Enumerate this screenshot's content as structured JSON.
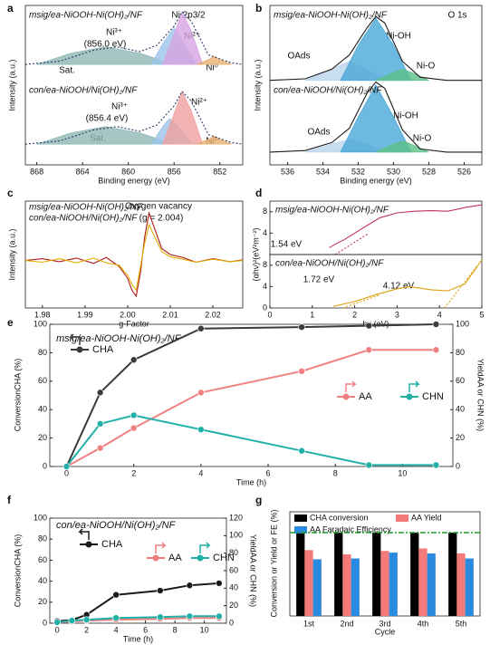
{
  "chart_data": [
    {
      "type": "line",
      "label": "a",
      "xlabel": "Binding energy (eV)",
      "ylabel": "Intensity (a.u.)",
      "xlim": [
        869,
        850
      ],
      "xticks": [
        868,
        864,
        860,
        856,
        852
      ],
      "ylim": [
        0,
        10
      ],
      "annotations": [
        "Ni 2p3/2",
        "Sat.",
        "Ni³⁺",
        "(856.0 eV)",
        "Ni²⁺",
        "Ni⁰",
        "Sat.",
        "Ni³⁺",
        "(856.4 eV)",
        "Ni²⁺",
        "Ni⁰"
      ],
      "series": [
        {
          "name": "msig/ea-NiOOH-Ni(OH)₂/NF",
          "color": "#2b3a67",
          "name_color": "#d0205a",
          "dash": true,
          "x": [
            869,
            866,
            863,
            861,
            859,
            857.5,
            856,
            855.3,
            854.5,
            853,
            851,
            850
          ],
          "values": [
            6.3,
            6.5,
            7.2,
            7.4,
            7.1,
            7.5,
            8.7,
            9.6,
            9.0,
            6.9,
            6.4,
            6.3
          ],
          "components": [
            {
              "color": "#8fb8b4",
              "x": [
                868,
                865,
                862,
                859,
                856
              ],
              "values": [
                6.3,
                7.0,
                7.4,
                7.0,
                6.3
              ]
            },
            {
              "color": "#9cc4ea",
              "x": [
                858,
                857,
                856,
                855,
                854
              ],
              "values": [
                6.3,
                7.6,
                8.6,
                7.4,
                6.3
              ]
            },
            {
              "color": "#d6a4e2",
              "x": [
                857,
                856,
                855.3,
                854.5,
                853.5
              ],
              "values": [
                6.3,
                8.2,
                9.6,
                8.4,
                6.3
              ]
            },
            {
              "color": "#e8b070",
              "x": [
                854,
                853,
                852.5,
                852,
                851
              ],
              "values": [
                6.3,
                6.6,
                6.8,
                6.6,
                6.3
              ]
            }
          ]
        },
        {
          "name": "con/ea-NiOOH/Ni(OH)₂/NF",
          "color": "#2b3a67",
          "name_color": "#e0a010",
          "dash": true,
          "x": [
            869,
            866,
            863,
            861,
            859,
            857.5,
            856,
            855.3,
            854.5,
            853,
            851,
            850
          ],
          "values": [
            1.3,
            1.5,
            2.2,
            2.4,
            2.1,
            2.5,
            3.7,
            4.6,
            4.0,
            1.9,
            1.4,
            1.3
          ],
          "components": [
            {
              "color": "#8fb8b4",
              "x": [
                868,
                865,
                862,
                859,
                856
              ],
              "values": [
                1.3,
                2.0,
                2.4,
                2.0,
                1.3
              ]
            },
            {
              "color": "#9cc4ea",
              "x": [
                858,
                857,
                856.4,
                855.4,
                854.4
              ],
              "values": [
                1.3,
                2.4,
                2.9,
                2.2,
                1.3
              ]
            },
            {
              "color": "#f0a0a0",
              "x": [
                857,
                856,
                855.3,
                854.5,
                853.5
              ],
              "values": [
                1.3,
                3.2,
                4.6,
                3.4,
                1.3
              ]
            },
            {
              "color": "#e8b070",
              "x": [
                854,
                853,
                852.5,
                852,
                851
              ],
              "values": [
                1.3,
                1.6,
                1.8,
                1.6,
                1.3
              ]
            }
          ]
        }
      ]
    },
    {
      "type": "line",
      "label": "b",
      "xlabel": "Binding energy (eV)",
      "ylabel": "Intensity (a.u.)",
      "xlim": [
        537,
        525
      ],
      "xticks": [
        536,
        534,
        532,
        530,
        528,
        526
      ],
      "ylim": [
        0,
        10
      ],
      "annotations": [
        "O 1s",
        "OAds",
        "Ni-OH",
        "Ni-O",
        "OAds",
        "Ni-OH",
        "Ni-O"
      ],
      "series": [
        {
          "name": "msig/ea-NiOOH-Ni(OH)₂/NF",
          "color": "#1a1a1a",
          "name_color": "#d0205a",
          "x": [
            537,
            535,
            533.5,
            532.5,
            531.5,
            531,
            530.5,
            529.5,
            528.5,
            527,
            525
          ],
          "values": [
            5.3,
            5.4,
            6.0,
            6.9,
            8.6,
            9.3,
            8.9,
            6.5,
            5.5,
            5.3,
            5.3
          ],
          "components": [
            {
              "color": "#bcd4ee",
              "x": [
                535,
                533.5,
                532.5,
                531.5,
                530.5
              ],
              "values": [
                5.3,
                6.0,
                6.5,
                6.0,
                5.3
              ]
            },
            {
              "color": "#4aa8d8",
              "x": [
                533,
                532,
                531,
                530,
                529
              ],
              "values": [
                5.3,
                7.5,
                9.2,
                7.5,
                5.3
              ]
            },
            {
              "color": "#5cc08a",
              "x": [
                531,
                530,
                529.5,
                529,
                528
              ],
              "values": [
                5.3,
                5.8,
                6.0,
                5.8,
                5.3
              ]
            }
          ]
        },
        {
          "name": "con/ea-NiOOH/Ni(OH)₂/NF",
          "color": "#1a1a1a",
          "name_color": "#e0a010",
          "x": [
            537,
            535,
            533.5,
            532.5,
            531.5,
            531,
            530.5,
            529.5,
            528.5,
            527,
            525
          ],
          "values": [
            0.8,
            0.9,
            1.4,
            2.3,
            4.5,
            5.2,
            4.8,
            2.2,
            1.0,
            0.8,
            0.8
          ],
          "components": [
            {
              "color": "#bcd4ee",
              "x": [
                535,
                533.5,
                532.5,
                531.5,
                530.5
              ],
              "values": [
                0.8,
                1.3,
                1.6,
                1.3,
                0.8
              ]
            },
            {
              "color": "#4aa8d8",
              "x": [
                533,
                532,
                531,
                530,
                529
              ],
              "values": [
                0.8,
                3.0,
                5.0,
                3.0,
                0.8
              ]
            },
            {
              "color": "#5cc08a",
              "x": [
                531,
                530,
                529.5,
                529,
                528
              ],
              "values": [
                0.8,
                1.3,
                1.5,
                1.3,
                0.8
              ]
            }
          ]
        }
      ]
    },
    {
      "type": "line",
      "label": "c",
      "xlabel": "g-Factor",
      "ylabel": "Intensity (a.u.)",
      "xlim": [
        1.976,
        2.027
      ],
      "xticks": [
        1.98,
        1.99,
        {
          "value": 2,
          "label": "2.00"
        },
        2.01,
        2.02
      ],
      "ylim": [
        -8,
        10
      ],
      "annotations": [
        "Oxygen vacancy",
        "(g = 2.004)"
      ],
      "series": [
        {
          "name": "msig/ea-NiOOH-Ni(OH)₂/NF",
          "color": "#b01818",
          "x": [
            1.976,
            1.98,
            1.984,
            1.988,
            1.992,
            1.995,
            1.998,
            2.0,
            2.001,
            2.002,
            2.003,
            2.004,
            2.005,
            2.006,
            2.008,
            2.01,
            2.013,
            2.016,
            2.02,
            2.024,
            2.027
          ],
          "values": [
            0,
            0.3,
            -0.2,
            0.4,
            -0.5,
            0.5,
            -1,
            -3,
            -5,
            -6,
            -2,
            4,
            8,
            6,
            2,
            1,
            0.5,
            -0.3,
            0.3,
            -0.2,
            0.1
          ]
        },
        {
          "name": "con/ea-NiOOH/Ni(OH)₂/NF",
          "color": "#e0b000",
          "x": [
            1.976,
            1.98,
            1.984,
            1.988,
            1.992,
            1.995,
            1.998,
            2.0,
            2.001,
            2.002,
            2.003,
            2.004,
            2.005,
            2.006,
            2.008,
            2.01,
            2.013,
            2.016,
            2.02,
            2.024,
            2.027
          ],
          "values": [
            0,
            -0.3,
            0.3,
            -0.4,
            0.4,
            -0.4,
            -0.8,
            -2.5,
            -4,
            -5,
            -1,
            3,
            6,
            4.5,
            1.5,
            0.6,
            0.2,
            -0.3,
            0.2,
            -0.2,
            0
          ]
        }
      ]
    },
    {
      "type": "line",
      "label": "d",
      "ylabel": "(αhν)²(eV²m⁻²)",
      "xlim": [
        0,
        5
      ],
      "ylim": [
        0,
        10
      ],
      "yticks": [
        4,
        8
      ],
      "annotations": [
        "1.54 eV"
      ],
      "series": [
        {
          "name": "msig/ea-NiOOH-Ni(OH)₂/NF",
          "color": "#c0306a",
          "name_color": "#d0205a",
          "x": [
            1.4,
            1.8,
            2.2,
            2.6,
            3.0,
            3.4,
            3.8,
            4.2,
            4.6,
            5
          ],
          "values": [
            1.3,
            3.0,
            5.0,
            6.9,
            7.8,
            8.1,
            8.2,
            8.1,
            8.8,
            9.3
          ]
        },
        {
          "color": "#c0306a",
          "dash": true,
          "x": [
            1.54,
            2.3
          ],
          "values": [
            0,
            3.8
          ]
        }
      ]
    },
    {
      "type": "line",
      "xlabel": "hv (eV)",
      "xlim": [
        0,
        5
      ],
      "xticks": [
        0,
        1,
        2,
        3,
        4,
        5
      ],
      "ylim": [
        0,
        10
      ],
      "yticks": [
        0,
        4,
        8
      ],
      "annotations": [
        "1.72 eV",
        "4.12 eV"
      ],
      "series": [
        {
          "name": "con/ea-NiOOH/Ni(OH)₂/NF",
          "color": "#e0a010",
          "x": [
            1.5,
            2,
            2.5,
            3,
            3.3,
            3.8,
            4.2,
            4.6,
            5
          ],
          "values": [
            0.3,
            1.2,
            2.5,
            3.6,
            4.0,
            3.4,
            3.2,
            4.5,
            9
          ]
        },
        {
          "color": "#e0a010",
          "dash": true,
          "x": [
            1.72,
            2.6
          ],
          "values": [
            0,
            2.5
          ]
        },
        {
          "color": "#e0a010",
          "dash": true,
          "x": [
            4.12,
            4.9
          ],
          "values": [
            0,
            8
          ]
        }
      ]
    },
    {
      "type": "line",
      "label": "e",
      "markers": true,
      "subtitle": "msig/ea-NiOOH-Ni(OH)₂/NF",
      "subtitle_color": "#d0205a",
      "xlabel": "Time (h)",
      "ylabel": "ConversionCHA (%)",
      "y2label": "YieldAA or CHN (%)",
      "xlim": [
        -0.5,
        11.5
      ],
      "xticks": [
        0,
        2,
        4,
        6,
        8,
        10
      ],
      "ylim": [
        0,
        100
      ],
      "yticks": [
        0,
        20,
        40,
        60,
        80,
        100
      ],
      "y2lim": [
        0,
        100
      ],
      "y2ticks": [
        0,
        20,
        40,
        60,
        80,
        100
      ],
      "x": [
        0,
        1,
        2,
        4,
        7,
        9,
        11
      ],
      "series": [
        {
          "name": "CHA",
          "color": "#3a3a3a",
          "values": [
            0,
            52,
            75,
            97,
            98,
            99,
            100
          ]
        },
        {
          "name": "AA",
          "color": "#f08080",
          "axis": "y2",
          "values": [
            0,
            13,
            27,
            52,
            67,
            82,
            82
          ]
        },
        {
          "name": "CHN",
          "color": "#20b0a8",
          "axis": "y2",
          "values": [
            0,
            30,
            36,
            26,
            11,
            1,
            1
          ]
        }
      ]
    },
    {
      "type": "line",
      "label": "f",
      "markers": true,
      "subtitle": "con/ea-NiOOH/Ni(OH)₂/NF",
      "subtitle_color": "#e0a010",
      "xlabel": "Time (h)",
      "ylabel": "ConversionCHA (%)",
      "y2label": "YieldAA or CHN (%)",
      "xlim": [
        -0.5,
        11.5
      ],
      "xticks": [
        0,
        2,
        4,
        6,
        8,
        10
      ],
      "ylim": [
        0,
        100
      ],
      "yticks": [
        0,
        20,
        40,
        60,
        80,
        100
      ],
      "y2lim": [
        0,
        120
      ],
      "y2ticks": [
        0,
        20,
        40,
        60,
        80,
        100,
        120
      ],
      "x": [
        0,
        1,
        2,
        4,
        7,
        9,
        11
      ],
      "series": [
        {
          "name": "CHA",
          "color": "#1a1a1a",
          "values": [
            2,
            3,
            8,
            27,
            31,
            36,
            38
          ]
        },
        {
          "name": "AA",
          "color": "#f08080",
          "axis": "y2",
          "values": [
            1,
            2,
            3,
            4,
            5,
            6,
            6
          ]
        },
        {
          "name": "CHN",
          "color": "#20b0a8",
          "axis": "y2",
          "values": [
            1,
            3,
            4,
            6,
            7,
            8,
            8
          ]
        }
      ]
    },
    {
      "type": "bar",
      "label": "g",
      "xlabel": "Cycle",
      "ylabel": "Conversion or Yield or FE (%)",
      "ylim": [
        0,
        125
      ],
      "hline": 100,
      "hline_color": "#1a9a2a",
      "categories": [
        "1st",
        "2nd",
        "3rd",
        "4th",
        "5th"
      ],
      "series": [
        {
          "name": "CHA conversion",
          "color": "#000000",
          "values": [
            100,
            100,
            100,
            100,
            100
          ]
        },
        {
          "name": "AA Yield",
          "color": "#f47a7a",
          "values": [
            79,
            74,
            78,
            81,
            75
          ]
        },
        {
          "name": "AA Faradaic Efficiency",
          "color": "#2a8ae0",
          "values": [
            68,
            69,
            76,
            75,
            69
          ]
        }
      ]
    }
  ]
}
